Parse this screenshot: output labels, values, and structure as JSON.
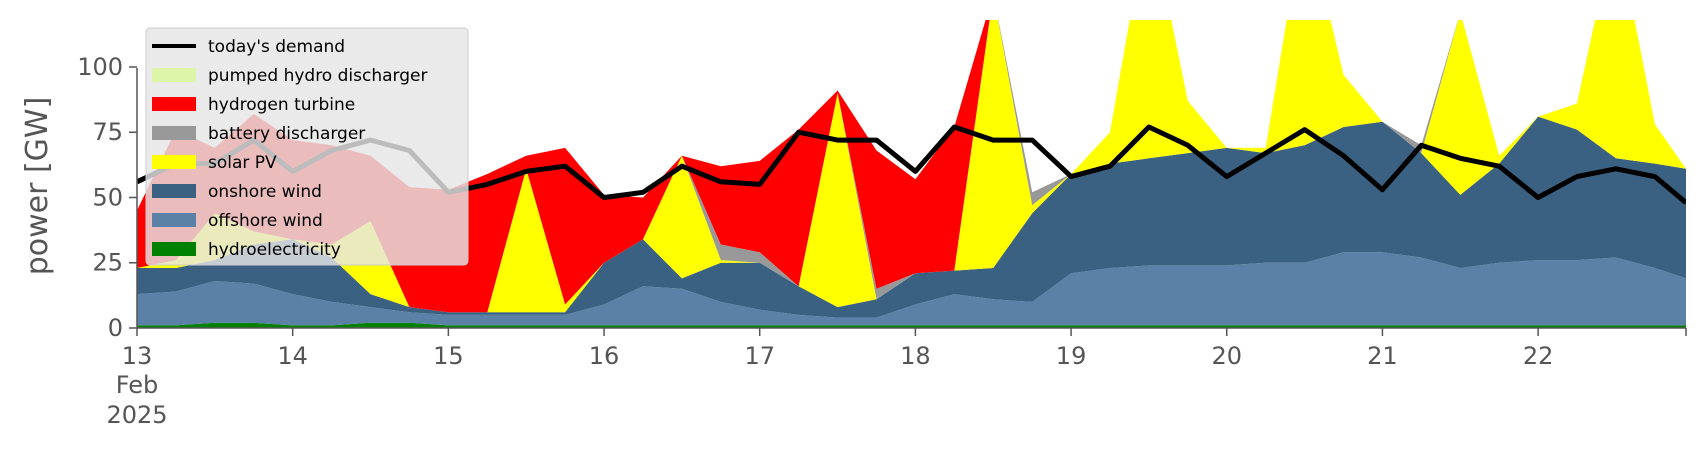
{
  "chart_data": {
    "type": "area",
    "title": "",
    "ylabel": "power [GW]",
    "xlabel": "",
    "ylim": [
      0,
      118
    ],
    "xlim": [
      13,
      22.95
    ],
    "y_ticks": [
      0,
      25,
      50,
      75,
      100
    ],
    "y_tick_labels": [
      "0",
      "25",
      "50",
      "75",
      "100"
    ],
    "x_ticks": [
      13,
      14,
      15,
      16,
      17,
      18,
      19,
      20,
      21,
      22
    ],
    "x_tick_labels": [
      "13",
      "14",
      "15",
      "16",
      "17",
      "18",
      "19",
      "20",
      "21",
      "22"
    ],
    "x_tick_first_sublabels": [
      "Feb",
      "2025"
    ],
    "grid": false,
    "legend_position": "upper-left",
    "x": [
      13.0,
      13.25,
      13.5,
      13.75,
      14.0,
      14.25,
      14.5,
      14.75,
      15.0,
      15.25,
      15.5,
      15.75,
      16.0,
      16.25,
      16.5,
      16.75,
      17.0,
      17.25,
      17.5,
      17.75,
      18.0,
      18.25,
      18.5,
      18.75,
      19.0,
      19.25,
      19.5,
      19.75,
      20.0,
      20.25,
      20.5,
      20.75,
      21.0,
      21.25,
      21.5,
      21.75,
      22.0,
      22.25,
      22.5,
      22.75,
      22.95
    ],
    "stack_order": [
      "hydroelectricity",
      "offshore wind",
      "onshore wind",
      "solar PV",
      "battery discharger",
      "hydrogen turbine",
      "pumped hydro discharger"
    ],
    "series": [
      {
        "name": "hydroelectricity",
        "color": "#008000",
        "values": [
          1,
          1,
          2,
          2,
          1,
          1,
          2,
          2,
          1,
          1,
          1,
          1,
          1,
          1,
          1,
          1,
          1,
          1,
          1,
          1,
          1,
          1,
          1,
          1,
          1,
          1,
          1,
          1,
          1,
          1,
          1,
          1,
          1,
          1,
          1,
          1,
          1,
          1,
          1,
          1,
          1
        ]
      },
      {
        "name": "offshore wind",
        "color": "#5b82a6",
        "values": [
          12,
          13,
          16,
          15,
          12,
          9,
          6,
          4,
          4,
          4,
          4,
          4,
          8,
          15,
          14,
          9,
          6,
          4,
          3,
          3,
          8,
          12,
          10,
          9,
          20,
          22,
          23,
          23,
          23,
          24,
          24,
          28,
          28,
          26,
          22,
          24,
          25,
          25,
          26,
          22,
          18
        ]
      },
      {
        "name": "onshore wind",
        "color": "#3b6182",
        "values": [
          10,
          9,
          8,
          15,
          21,
          17,
          5,
          2,
          1,
          1,
          1,
          1,
          16,
          18,
          4,
          15,
          18,
          11,
          4,
          7,
          12,
          9,
          12,
          34,
          38,
          40,
          41,
          43,
          45,
          42,
          45,
          48,
          50,
          40,
          28,
          38,
          55,
          50,
          38,
          40,
          42
        ]
      },
      {
        "name": "solar PV",
        "color": "#ffff00",
        "values": [
          0,
          3,
          18,
          5,
          0,
          5,
          28,
          0,
          0,
          0,
          55,
          3,
          0,
          0,
          47,
          1,
          0,
          0,
          82,
          0,
          0,
          0,
          105,
          3,
          0,
          12,
          95,
          20,
          0,
          2,
          90,
          20,
          0,
          0,
          70,
          3,
          0,
          10,
          90,
          15,
          0
        ]
      },
      {
        "name": "battery discharger",
        "color": "#999999",
        "values": [
          0,
          0,
          0,
          0,
          0,
          0,
          0,
          0,
          0,
          0,
          0,
          0,
          0,
          0,
          0,
          6,
          4,
          0,
          0,
          4,
          0,
          0,
          0,
          5,
          0,
          0,
          0,
          0,
          0,
          0,
          0,
          0,
          0,
          3,
          0,
          0,
          0,
          0,
          0,
          0,
          0
        ]
      },
      {
        "name": "hydrogen turbine",
        "color": "#ff0000",
        "values": [
          22,
          50,
          25,
          45,
          38,
          38,
          25,
          46,
          47,
          53,
          5,
          60,
          26,
          16,
          0,
          30,
          35,
          60,
          1,
          53,
          36,
          55,
          0,
          0,
          0,
          0,
          0,
          0,
          0,
          0,
          0,
          0,
          0,
          0,
          0,
          0,
          0,
          0,
          0,
          0,
          0
        ]
      },
      {
        "name": "pumped hydro discharger",
        "color": "#ddf5a8",
        "values": [
          0,
          0,
          0,
          0,
          0,
          0,
          0,
          0,
          0,
          0,
          0,
          0,
          0,
          0,
          0,
          0,
          0,
          0,
          0,
          0,
          0,
          0,
          0,
          0,
          0,
          0,
          0,
          0,
          0,
          0,
          0,
          0,
          0,
          0,
          0,
          0,
          0,
          0,
          0,
          0,
          0
        ]
      }
    ],
    "demand": {
      "name": "today's demand",
      "color": "#000000",
      "values": [
        56,
        63,
        63,
        72,
        60,
        68,
        72,
        68,
        52,
        55,
        60,
        62,
        50,
        52,
        62,
        56,
        55,
        75,
        72,
        72,
        60,
        77,
        72,
        72,
        58,
        62,
        77,
        70,
        58,
        67,
        76,
        66,
        53,
        70,
        65,
        62,
        50,
        58,
        61,
        58,
        48
      ]
    },
    "legend": [
      "today's demand",
      "pumped hydro discharger",
      "hydrogen turbine",
      "battery discharger",
      "solar PV",
      "onshore wind",
      "offshore wind",
      "hydroelectricity"
    ]
  }
}
